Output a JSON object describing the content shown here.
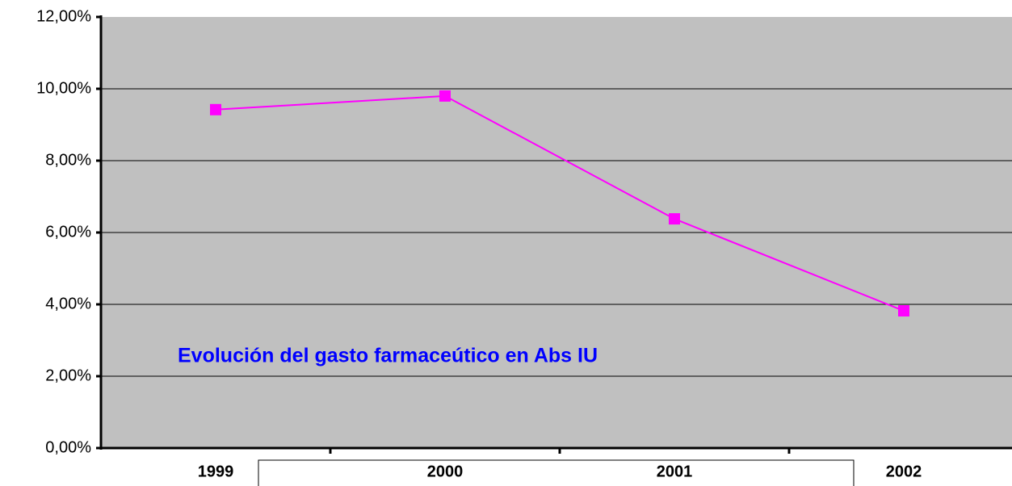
{
  "chart_data": {
    "type": "line",
    "title": "Evolución del gasto farmaceútico en Abs IU",
    "categories": [
      "1999",
      "2000",
      "2001",
      "2002"
    ],
    "values": [
      9.42,
      9.8,
      6.38,
      3.82
    ],
    "color": "#ff00ff",
    "ylim": [
      0,
      12
    ],
    "yticks": [
      {
        "value": 0,
        "label": "0,00%"
      },
      {
        "value": 2,
        "label": "2,00%"
      },
      {
        "value": 4,
        "label": "4,00%"
      },
      {
        "value": 6,
        "label": "6,00%"
      },
      {
        "value": 8,
        "label": "8,00%"
      },
      {
        "value": 10,
        "label": "10,00%"
      },
      {
        "value": 12,
        "label": "12,00%"
      }
    ],
    "grid": true
  }
}
